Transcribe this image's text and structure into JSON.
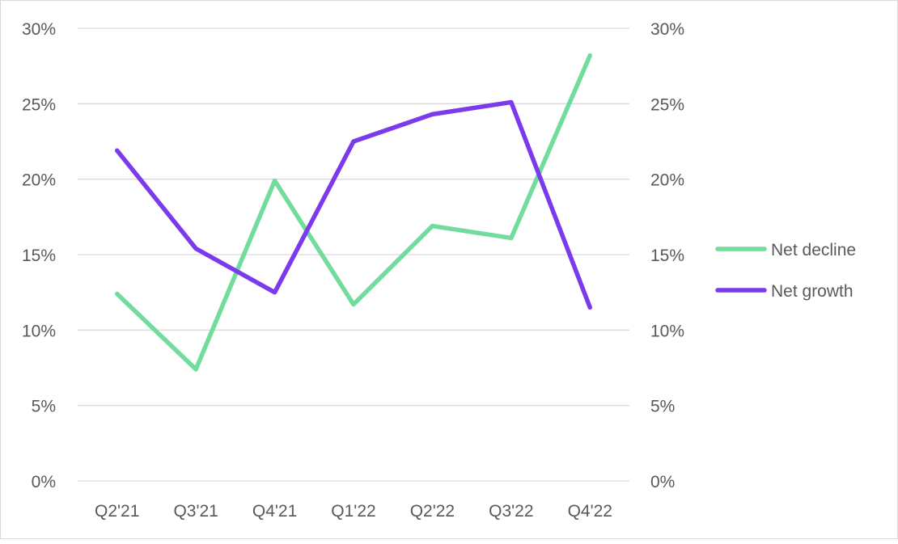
{
  "chart_data": {
    "type": "line",
    "title": "",
    "xlabel": "",
    "ylabel": "",
    "categories": [
      "Q2'21",
      "Q3'21",
      "Q4'21",
      "Q1'22",
      "Q2'22",
      "Q3'22",
      "Q4'22"
    ],
    "series": [
      {
        "name": "Net decline",
        "color": "#72dc9c",
        "values": [
          12.4,
          7.4,
          19.9,
          11.7,
          16.9,
          16.1,
          28.2
        ]
      },
      {
        "name": "Net growth",
        "color": "#7c3aed",
        "values": [
          21.9,
          15.4,
          12.5,
          22.5,
          24.3,
          25.1,
          11.5
        ]
      }
    ],
    "ylim": [
      0,
      30
    ],
    "yticks": [
      "0%",
      "5%",
      "10%",
      "15%",
      "20%",
      "25%",
      "30%"
    ],
    "ytick_values": [
      0,
      5,
      10,
      15,
      20,
      25,
      30
    ],
    "secondary_yticks": [
      "0%",
      "5%",
      "10%",
      "15%",
      "20%",
      "25%",
      "30%"
    ],
    "grid": true,
    "legend_position": "right"
  }
}
